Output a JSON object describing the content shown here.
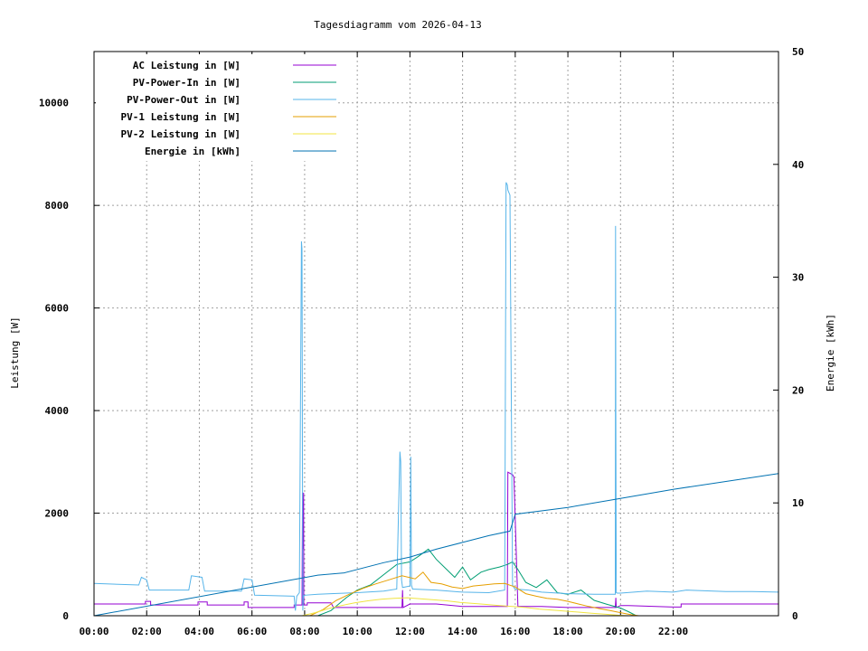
{
  "chart_data": {
    "type": "line",
    "title": "Tagesdiagramm vom 2026-04-13",
    "xlabel": "",
    "ylabel": "Leistung [W]",
    "y2label": "Energie [kWh]",
    "xlim": [
      0,
      26
    ],
    "ylim": [
      0,
      11000
    ],
    "y2lim": [
      0,
      50
    ],
    "x_ticks": [
      "00:00",
      "02:00",
      "04:00",
      "06:00",
      "08:00",
      "10:00",
      "12:00",
      "14:00",
      "16:00",
      "18:00",
      "20:00",
      "22:00"
    ],
    "y_ticks": [
      0,
      2000,
      4000,
      6000,
      8000,
      10000
    ],
    "y2_ticks": [
      0,
      10,
      20,
      30,
      40,
      50
    ],
    "grid": true,
    "legend_position": "top-left",
    "series": [
      {
        "name": "AC Leistung in [W]",
        "axis": "left",
        "color": "#9400d3",
        "x": [
          0,
          1.95,
          1.95,
          2.15,
          2.15,
          3.95,
          3.95,
          4.3,
          4.3,
          5.7,
          5.7,
          5.85,
          5.85,
          7.6,
          7.6,
          7.9,
          7.92,
          7.93,
          7.96,
          7.97,
          8.1,
          8.1,
          9,
          9.1,
          11,
          11.7,
          11.72,
          11.74,
          12,
          13,
          14,
          15,
          15.7,
          15.72,
          15.9,
          15.95,
          16.1,
          17,
          18,
          19,
          19.8,
          19.82,
          19.84,
          20,
          20.3,
          22,
          22.3,
          22.3,
          24,
          26
        ],
        "y": [
          230,
          230,
          280,
          280,
          210,
          210,
          270,
          270,
          210,
          210,
          270,
          270,
          160,
          160,
          210,
          210,
          2400,
          1300,
          2400,
          210,
          210,
          250,
          250,
          160,
          160,
          160,
          500,
          160,
          230,
          230,
          180,
          180,
          180,
          2800,
          2750,
          2700,
          180,
          180,
          160,
          160,
          160,
          350,
          160,
          200,
          200,
          170,
          170,
          230,
          230,
          230
        ]
      },
      {
        "name": "PV-Power-In in [W]",
        "axis": "left",
        "color": "#009e73",
        "x": [
          7.6,
          8.5,
          9,
          9.6,
          10,
          10.5,
          11,
          11.5,
          12,
          12.3,
          12.7,
          13,
          13.4,
          13.7,
          14,
          14.3,
          14.7,
          15,
          15.4,
          15.7,
          15.9,
          16.1,
          16.4,
          16.8,
          17.2,
          17.6,
          18,
          18.5,
          19,
          19.5,
          20,
          20.3,
          20.6
        ],
        "y": [
          0,
          0,
          100,
          360,
          500,
          600,
          800,
          1000,
          1050,
          1150,
          1300,
          1100,
          900,
          750,
          950,
          700,
          850,
          900,
          950,
          1000,
          1050,
          900,
          650,
          550,
          700,
          450,
          420,
          500,
          300,
          220,
          150,
          80,
          0
        ]
      },
      {
        "name": "PV-Power-Out in [W]",
        "axis": "left",
        "color": "#56b4e9",
        "x": [
          0,
          1.7,
          1.8,
          2,
          2.1,
          3.6,
          3.7,
          4.1,
          4.2,
          5.6,
          5.7,
          6,
          6.1,
          7.6,
          7.65,
          7.7,
          7.8,
          7.88,
          7.9,
          7.93,
          7.95,
          8,
          8.5,
          9,
          10,
          11,
          11.5,
          11.62,
          11.65,
          11.68,
          11.72,
          12,
          12.03,
          12.06,
          12.1,
          13,
          14,
          15,
          15.6,
          15.65,
          15.7,
          15.72,
          15.8,
          15.9,
          15.95,
          16,
          16.5,
          17,
          18,
          19,
          19.8,
          19.81,
          19.82,
          19.84,
          19.88,
          20,
          21,
          22,
          22.5,
          24,
          25,
          26
        ],
        "y": [
          630,
          600,
          750,
          700,
          500,
          500,
          780,
          750,
          480,
          480,
          720,
          700,
          400,
          380,
          100,
          380,
          450,
          7300,
          7150,
          100,
          380,
          400,
          420,
          430,
          450,
          480,
          520,
          3200,
          3000,
          700,
          550,
          580,
          3100,
          600,
          520,
          500,
          460,
          450,
          500,
          8450,
          8400,
          8300,
          8200,
          600,
          550,
          520,
          500,
          460,
          430,
          420,
          420,
          7600,
          4000,
          450,
          440,
          440,
          480,
          460,
          500,
          470,
          470,
          460
        ]
      },
      {
        "name": "PV-1 Leistung in [W]",
        "axis": "left",
        "color": "#e69f00",
        "x": [
          8.2,
          8.7,
          9.2,
          9.7,
          10.2,
          10.7,
          11.2,
          11.7,
          12.2,
          12.5,
          12.8,
          13.2,
          13.6,
          14,
          14.4,
          14.8,
          15.2,
          15.6,
          16,
          16.4,
          16.8,
          17.2,
          17.6,
          18,
          18.4,
          18.8,
          19.2,
          19.6,
          20,
          20.4,
          20.7
        ],
        "y": [
          0,
          120,
          300,
          420,
          530,
          620,
          700,
          780,
          720,
          850,
          650,
          620,
          560,
          530,
          580,
          600,
          620,
          630,
          560,
          430,
          380,
          340,
          320,
          280,
          230,
          180,
          140,
          100,
          60,
          20,
          0
        ]
      },
      {
        "name": "PV-2 Leistung in [W]",
        "axis": "left",
        "color": "#f0e442",
        "x": [
          7.9,
          8.4,
          8.9,
          9.4,
          9.9,
          10.4,
          10.9,
          11.4,
          11.9,
          12.4,
          12.9,
          13.4,
          13.9,
          14.4,
          14.9,
          15.4,
          15.9,
          16.4,
          16.9,
          17.4,
          17.9,
          18.4,
          18.9,
          19.4,
          19.9,
          20.3
        ],
        "y": [
          0,
          60,
          140,
          200,
          250,
          290,
          320,
          340,
          350,
          330,
          310,
          290,
          260,
          240,
          220,
          200,
          180,
          160,
          130,
          110,
          90,
          70,
          50,
          30,
          10,
          0
        ]
      },
      {
        "name": "Energie in [kWh]",
        "axis": "right",
        "color": "#0072b2",
        "x": [
          0,
          8.5,
          9.5,
          11,
          12,
          13,
          14,
          15,
          15.8,
          16,
          18,
          20,
          22,
          24,
          26
        ],
        "y": [
          0,
          3.6,
          3.8,
          4.7,
          5.2,
          5.9,
          6.5,
          7.1,
          7.5,
          9.0,
          9.6,
          10.4,
          11.2,
          11.9,
          12.6
        ]
      }
    ]
  }
}
